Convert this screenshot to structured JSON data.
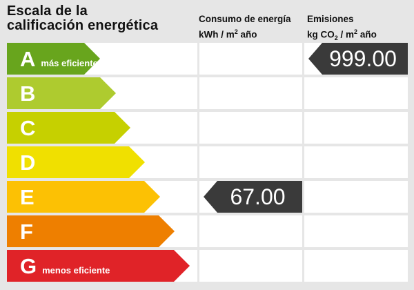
{
  "page": {
    "background": "#e6e6e6",
    "cell_background": "#ffffff"
  },
  "header": {
    "title_line1": "Escala de la",
    "title_line2": "calificación energética",
    "consumo": {
      "title": "Consumo de energía",
      "unit_p1": "kWh / m",
      "unit_sup": "2",
      "unit_p2": " año"
    },
    "emisiones": {
      "title": "Emisiones",
      "unit_p1": "kg CO",
      "unit_sub": "2",
      "unit_p2": " / m",
      "unit_sup": "2",
      "unit_p3": " año"
    }
  },
  "scale": {
    "ratings": [
      {
        "letter": "A",
        "note": "más eficiente",
        "color": "#68a51d",
        "arrow_width": 135
      },
      {
        "letter": "B",
        "note": "",
        "color": "#aecb2f",
        "arrow_width": 158
      },
      {
        "letter": "C",
        "note": "",
        "color": "#c6d000",
        "arrow_width": 179
      },
      {
        "letter": "D",
        "note": "",
        "color": "#f0e000",
        "arrow_width": 200
      },
      {
        "letter": "E",
        "note": "",
        "color": "#fcc104",
        "arrow_width": 222
      },
      {
        "letter": "F",
        "note": "",
        "color": "#ee7f00",
        "arrow_width": 243
      },
      {
        "letter": "G",
        "note": "menos eficiente",
        "color": "#e02328",
        "arrow_width": 265
      }
    ]
  },
  "indicators": {
    "consumo": {
      "value": "67.00",
      "row": "E"
    },
    "emisiones": {
      "value": "999.00",
      "row": "A"
    },
    "badge_color": "#3a3a3a",
    "text_color": "#ffffff"
  },
  "chart_data": {
    "type": "bar",
    "title": "Escala de la calificación energética",
    "categories": [
      "A",
      "B",
      "C",
      "D",
      "E",
      "F",
      "G"
    ],
    "category_notes": {
      "A": "más eficiente",
      "G": "menos eficiente"
    },
    "bar_colors": [
      "#68a51d",
      "#aecb2f",
      "#c6d000",
      "#f0e000",
      "#fcc104",
      "#ee7f00",
      "#e02328"
    ],
    "bar_relative_lengths": [
      135,
      158,
      179,
      200,
      222,
      243,
      265
    ],
    "columns": [
      "Consumo de energía kWh/m² año",
      "Emisiones kg CO₂/m² año"
    ],
    "values": {
      "consumo_kwh_m2_ano": 67.0,
      "consumo_rating_row": "E",
      "emisiones_kg_co2_m2_ano": 999.0,
      "emisiones_rating_row": "A"
    },
    "legend_position": "none",
    "grid": "white cells on gray background"
  }
}
